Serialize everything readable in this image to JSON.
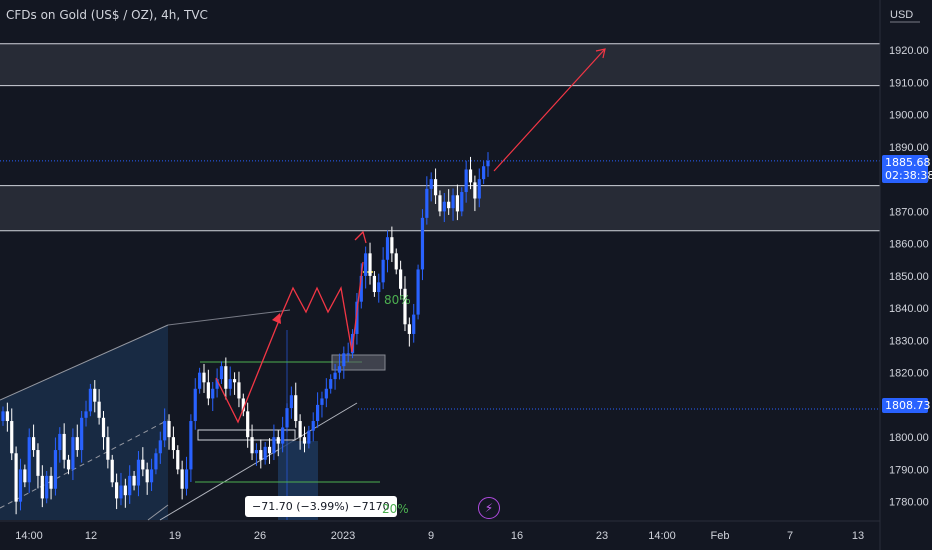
{
  "header": {
    "symbol_title": "CFDs on Gold (US$ / OZ), 4h, TVC"
  },
  "axis": {
    "currency_label": "USD"
  },
  "price_tags": {
    "current_price": "1885.68",
    "countdown": "02:38:38",
    "level_price": "1808.73"
  },
  "annotations": {
    "measure_text": "−71.70 (−3.99%) −7170",
    "pct_80": "80%",
    "pct_20": "20%"
  },
  "colors": {
    "background": "#131722",
    "up_candle": "#2962ff",
    "down_candle": "#ffffff",
    "zone_fill": "#2a2e39",
    "arrow": "#f23645",
    "channel_fill": "#1e3a5f",
    "green_line": "#4caf50",
    "dotted_level": "#2962ff"
  },
  "icons": {
    "flash": "lightning-bolt-icon"
  },
  "chart_data": {
    "type": "candlestick",
    "title": "CFDs on Gold (US$ / OZ), 4h, TVC",
    "ylabel": "USD",
    "ylim": [
      1774,
      1934
    ],
    "y_ticks": [
      "1920.00",
      "1910.00",
      "1900.00",
      "1890.00",
      "1880.00",
      "1870.00",
      "1860.00",
      "1850.00",
      "1840.00",
      "1830.00",
      "1820.00",
      "1810.00",
      "1800.00",
      "1790.00",
      "1780.00"
    ],
    "x_ticks": [
      "14:00",
      "12",
      "19",
      "26",
      "2023",
      "9",
      "16",
      "23",
      "14:00",
      "Feb",
      "7",
      "13"
    ],
    "grid": false,
    "zones": [
      {
        "name": "upper-resistance",
        "low": 1909,
        "high": 1922
      },
      {
        "name": "support-resistance",
        "low": 1864,
        "high": 1878
      }
    ],
    "levels": [
      {
        "name": "current-price",
        "value": 1885.68
      },
      {
        "name": "dotted-level",
        "value": 1808.73
      }
    ],
    "measurement": {
      "change": -71.7,
      "percent": -3.99,
      "ticks": -7170
    },
    "closes": [
      1808,
      1805,
      1795,
      1780,
      1790,
      1786,
      1800,
      1796,
      1788,
      1781,
      1788,
      1784,
      1796,
      1801,
      1793,
      1790,
      1800,
      1796,
      1806,
      1808,
      1815,
      1811,
      1806,
      1800,
      1793,
      1786,
      1781,
      1785,
      1782,
      1788,
      1785,
      1793,
      1790,
      1786,
      1790,
      1795,
      1799,
      1805,
      1800,
      1796,
      1790,
      1784,
      1790,
      1805,
      1815,
      1820,
      1817,
      1812,
      1815,
      1818,
      1822,
      1815,
      1818,
      1817,
      1812,
      1808,
      1800,
      1795,
      1796,
      1793,
      1797,
      1795,
      1800,
      1798,
      1803,
      1809,
      1813,
      1805,
      1800,
      1798,
      1802,
      1805,
      1810,
      1812,
      1815,
      1818,
      1820,
      1822,
      1826,
      1826,
      1832,
      1842,
      1850,
      1857,
      1850,
      1845,
      1848,
      1855,
      1862,
      1857,
      1852,
      1846,
      1835,
      1832,
      1838,
      1852,
      1868,
      1877,
      1880,
      1875,
      1870,
      1873,
      1871,
      1875,
      1870,
      1876,
      1883,
      1879,
      1874,
      1880,
      1884,
      1885.68
    ]
  }
}
